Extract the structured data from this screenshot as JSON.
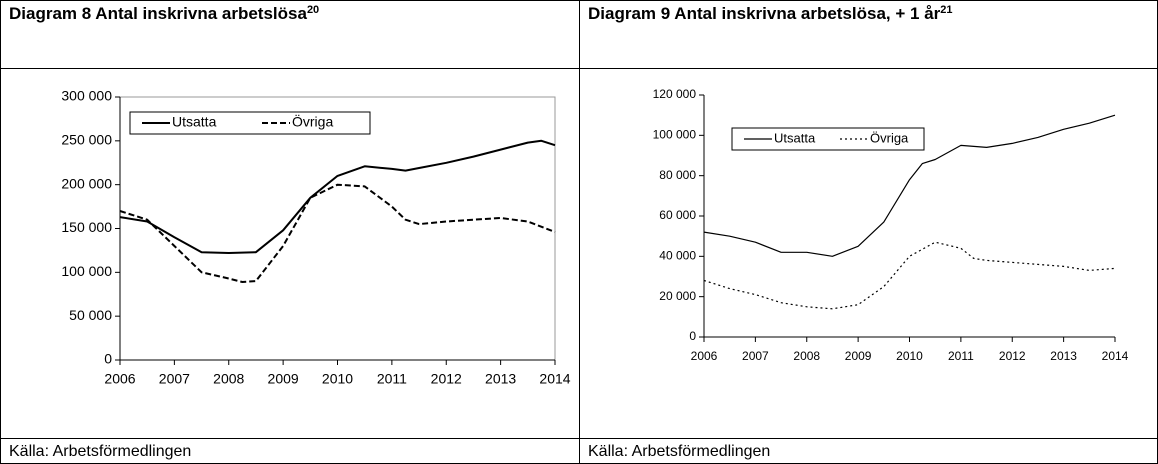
{
  "panels": [
    {
      "heading": "Diagram 8 Antal inskrivna arbetslösa",
      "note": "20",
      "source": "Källa: Arbetsförmedlingen"
    },
    {
      "heading": "Diagram 9 Antal inskrivna arbetslösa, + 1 år",
      "note": "21",
      "source": "Källa: Arbetsförmedlingen"
    }
  ],
  "chart_data": [
    {
      "type": "line",
      "legend": "upper left",
      "xlim": [
        2006,
        2014
      ],
      "xticks": [
        2006,
        2007,
        2008,
        2009,
        2010,
        2011,
        2012,
        2013,
        2014
      ],
      "ylim": [
        0,
        300000
      ],
      "yticks": [
        {
          "value": 0,
          "label": "0"
        },
        {
          "value": 50000,
          "label": "50 000"
        },
        {
          "value": 100000,
          "label": "100 000"
        },
        {
          "value": 150000,
          "label": "150 000"
        },
        {
          "value": 200000,
          "label": "200 000"
        },
        {
          "value": 250000,
          "label": "250 000"
        },
        {
          "value": 300000,
          "label": "300 000"
        }
      ],
      "series": [
        {
          "name": "Utsatta",
          "color": "#000000",
          "dash": "solid",
          "x": [
            2006,
            2006.5,
            2007,
            2007.5,
            2008,
            2008.5,
            2009,
            2009.5,
            2010,
            2010.5,
            2011,
            2011.25,
            2011.5,
            2012,
            2012.5,
            2013,
            2013.5,
            2013.75,
            2014
          ],
          "values": [
            163000,
            158000,
            140000,
            123000,
            122000,
            123000,
            148000,
            185000,
            210000,
            221000,
            218000,
            216000,
            219000,
            225000,
            232000,
            240000,
            248000,
            250000,
            245000
          ]
        },
        {
          "name": "Övriga",
          "color": "#000000",
          "dash": "dashed",
          "x": [
            2006,
            2006.5,
            2007,
            2007.5,
            2008,
            2008.25,
            2008.5,
            2009,
            2009.5,
            2010,
            2010.5,
            2011,
            2011.25,
            2011.5,
            2012,
            2012.5,
            2013,
            2013.5,
            2014
          ],
          "values": [
            170000,
            160000,
            130000,
            100000,
            93000,
            89000,
            90000,
            130000,
            185000,
            200000,
            198000,
            175000,
            160000,
            155000,
            158000,
            160000,
            162000,
            158000,
            146000
          ]
        }
      ]
    },
    {
      "type": "line",
      "legend": "upper left",
      "xlim": [
        2006,
        2014
      ],
      "xticks": [
        2006,
        2007,
        2008,
        2009,
        2010,
        2011,
        2012,
        2013,
        2014
      ],
      "ylim": [
        0,
        120000
      ],
      "yticks": [
        {
          "value": 0,
          "label": "0"
        },
        {
          "value": 20000,
          "label": "20 000"
        },
        {
          "value": 40000,
          "label": "40 000"
        },
        {
          "value": 60000,
          "label": "60 000"
        },
        {
          "value": 80000,
          "label": "80 000"
        },
        {
          "value": 100000,
          "label": "100 000"
        },
        {
          "value": 120000,
          "label": "120 000"
        }
      ],
      "series": [
        {
          "name": "Utsatta",
          "color": "#000000",
          "dash": "solid",
          "x": [
            2006,
            2006.5,
            2007,
            2007.5,
            2008,
            2008.5,
            2009,
            2009.5,
            2010,
            2010.25,
            2010.5,
            2011,
            2011.5,
            2012,
            2012.5,
            2013,
            2013.5,
            2014
          ],
          "values": [
            52000,
            50000,
            47000,
            42000,
            42000,
            40000,
            45000,
            57000,
            78000,
            86000,
            88000,
            95000,
            94000,
            96000,
            99000,
            103000,
            106000,
            110000
          ]
        },
        {
          "name": "Övriga",
          "color": "#000000",
          "dash": "dotted",
          "x": [
            2006,
            2006.5,
            2007,
            2007.5,
            2008,
            2008.5,
            2009,
            2009.5,
            2010,
            2010.5,
            2011,
            2011.25,
            2011.5,
            2012,
            2012.5,
            2013,
            2013.5,
            2014
          ],
          "values": [
            28000,
            24000,
            21000,
            17000,
            15000,
            14000,
            16000,
            25000,
            40000,
            47000,
            44000,
            39000,
            38000,
            37000,
            36000,
            35000,
            33000,
            34000
          ]
        }
      ]
    }
  ]
}
